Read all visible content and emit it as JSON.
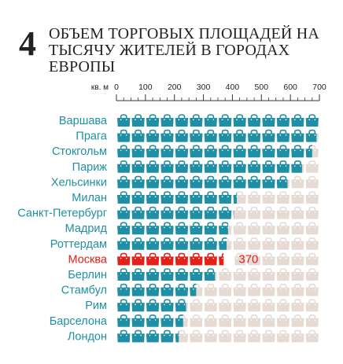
{
  "header": {
    "number": "4",
    "title": "ОБЪЕМ ТОРГОВЫХ ПЛОЩАДЕЙ НА ТЫСЯЧУ ЖИТЕЛЕЙ В ГОРОДАХ ЕВРОПЫ"
  },
  "colors": {
    "series": "#1f8fa5",
    "highlight": "#e32119",
    "background_icon": "#e6dbd4"
  },
  "icon": "shopping-bag-icon",
  "chart_data": {
    "type": "bar",
    "orientation": "horizontal",
    "unit_label": "кв. м",
    "x_ticks": [
      0,
      100,
      200,
      300,
      400,
      500,
      600,
      700
    ],
    "xlim": [
      0,
      700
    ],
    "icon_value": 50,
    "categories": [
      "Варшава",
      "Прага",
      "Стокгольм",
      "Париж",
      "Хельсинки",
      "Милан",
      "Санкт-Петербург",
      "Мадрид",
      "Роттердам",
      "Москва",
      "Берлин",
      "Стамбул",
      "Рим",
      "Барселона",
      "Лондон"
    ],
    "values": [
      700,
      690,
      675,
      640,
      590,
      415,
      405,
      385,
      380,
      370,
      340,
      275,
      240,
      230,
      215
    ],
    "highlight": "Москва",
    "highlight_label": "370"
  }
}
